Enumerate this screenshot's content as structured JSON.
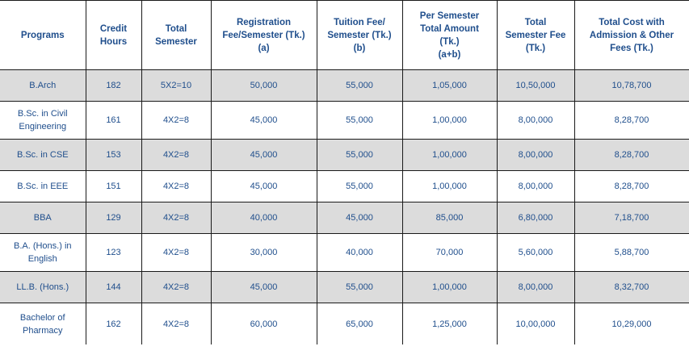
{
  "table": {
    "headers": [
      {
        "lines": [
          "Programs"
        ]
      },
      {
        "lines": [
          "Credit",
          "Hours"
        ]
      },
      {
        "lines": [
          "Total",
          "Semester"
        ]
      },
      {
        "lines": [
          "Registration",
          "Fee/Semester (Tk.)",
          "(a)"
        ]
      },
      {
        "lines": [
          "Tuition Fee/",
          "Semester (Tk.)",
          "(b)"
        ]
      },
      {
        "lines": [
          "Per Semester",
          "Total Amount",
          "(Tk.)",
          "(a+b)"
        ]
      },
      {
        "lines": [
          "Total",
          "Semester Fee",
          "(Tk.)"
        ]
      },
      {
        "lines": [
          "Total Cost with",
          "Admission & Other",
          "Fees (Tk.)"
        ]
      }
    ],
    "rows": [
      {
        "program": [
          "B.Arch"
        ],
        "credit": "182",
        "semesters": "5X2=10",
        "registration": "50,000",
        "tuition": "55,000",
        "per_semester": "1,05,000",
        "total_semester_fee": "10,50,000",
        "total_cost": "10,78,700"
      },
      {
        "program": [
          "B.Sc. in Civil",
          "Engineering"
        ],
        "credit": "161",
        "semesters": "4X2=8",
        "registration": "45,000",
        "tuition": "55,000",
        "per_semester": "1,00,000",
        "total_semester_fee": "8,00,000",
        "total_cost": "8,28,700"
      },
      {
        "program": [
          "B.Sc. in CSE"
        ],
        "credit": "153",
        "semesters": "4X2=8",
        "registration": "45,000",
        "tuition": "55,000",
        "per_semester": "1,00,000",
        "total_semester_fee": "8,00,000",
        "total_cost": "8,28,700"
      },
      {
        "program": [
          "B.Sc. in EEE"
        ],
        "credit": "151",
        "semesters": "4X2=8",
        "registration": "45,000",
        "tuition": "55,000",
        "per_semester": "1,00,000",
        "total_semester_fee": "8,00,000",
        "total_cost": "8,28,700"
      },
      {
        "program": [
          "BBA"
        ],
        "credit": "129",
        "semesters": "4X2=8",
        "registration": "40,000",
        "tuition": "45,000",
        "per_semester": "85,000",
        "total_semester_fee": "6,80,000",
        "total_cost": "7,18,700"
      },
      {
        "program": [
          "B.A. (Hons.) in",
          "English"
        ],
        "credit": "123",
        "semesters": "4X2=8",
        "registration": "30,000",
        "tuition": "40,000",
        "per_semester": "70,000",
        "total_semester_fee": "5,60,000",
        "total_cost": "5,88,700"
      },
      {
        "program": [
          "LL.B. (Hons.)"
        ],
        "credit": "144",
        "semesters": "4X2=8",
        "registration": "45,000",
        "tuition": "55,000",
        "per_semester": "1,00,000",
        "total_semester_fee": "8,00,000",
        "total_cost": "8,32,700"
      },
      {
        "program": [
          "Bachelor of",
          "Pharmacy"
        ],
        "credit": "162",
        "semesters": "4X2=8",
        "registration": "60,000",
        "tuition": "65,000",
        "per_semester": "1,25,000",
        "total_semester_fee": "10,00,000",
        "total_cost": "10,29,000"
      }
    ]
  },
  "colors": {
    "text": "#1f4e8c",
    "shaded_row": "#dcdcdc",
    "border": "#1a1a1a"
  }
}
